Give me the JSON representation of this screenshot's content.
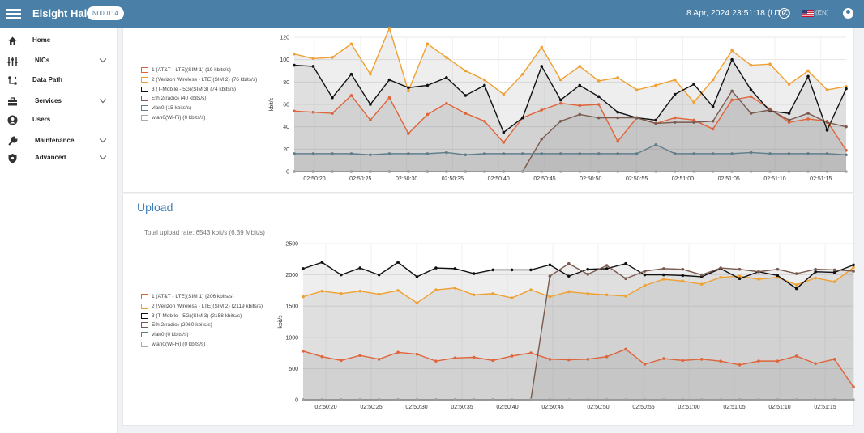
{
  "header": {
    "app_title": "Elsight Halo",
    "device_id": "N000114",
    "datetime": "8 Apr, 2024 23:51:18 (UTC)",
    "language": "(EN)",
    "icons": [
      "menu-icon",
      "help-icon",
      "us-flag-icon",
      "account-icon"
    ]
  },
  "sidebar": {
    "items": [
      {
        "label": "Home",
        "icon": "home-icon",
        "expandable": false
      },
      {
        "label": "NICs",
        "icon": "sliders-icon",
        "expandable": true
      },
      {
        "label": "Data Path",
        "icon": "data-path-icon",
        "expandable": false
      },
      {
        "label": "Services",
        "icon": "toolbox-icon",
        "expandable": true
      },
      {
        "label": "Users",
        "icon": "user-icon",
        "expandable": false
      },
      {
        "label": "Maintenance",
        "icon": "wrench-icon",
        "expandable": true
      },
      {
        "label": "Advanced",
        "icon": "shield-icon",
        "expandable": true
      }
    ]
  },
  "download": {
    "legend": [
      {
        "label": "1 (AT&T - LTE)(SIM 1) (19 kbits/s)",
        "color": "#e0643a"
      },
      {
        "label": "2 (Verizon Wireless - LTE)(SIM 2) (76 kbits/s)",
        "color": "#f0a030"
      },
      {
        "label": "3 (T-Mobile - 5G)(SIM 3) (74 kbits/s)",
        "color": "#111111"
      },
      {
        "label": "Eth 2(radio) (40 kbits/s)",
        "color": "#7a5a4e"
      },
      {
        "label": "vlan0 (15 kbits/s)",
        "color": "#607d8b"
      },
      {
        "label": "wlan0(Wi-Fi) (0 kbits/s)",
        "color": "#aaaaaa"
      }
    ]
  },
  "upload": {
    "title": "Upload",
    "total_rate": "Total upload rate: 6543 kbit/s (6.39 Mbit/s)",
    "legend": [
      {
        "label": "1 (AT&T - LTE)(SIM 1) (206 kbits/s)",
        "color": "#e0643a"
      },
      {
        "label": "2 (Verizon Wireless - LTE)(SIM 2) (2119 kbits/s)",
        "color": "#f0a030"
      },
      {
        "label": "3 (T-Mobile - 5G)(SIM 3) (2158 kbits/s)",
        "color": "#111111"
      },
      {
        "label": "Eth 2(radio) (2060 kbits/s)",
        "color": "#7a5a4e"
      },
      {
        "label": "vlan0 (0 kbits/s)",
        "color": "#607d8b"
      },
      {
        "label": "wlan0(Wi-Fi) (0 kbits/s)",
        "color": "#aaaaaa"
      }
    ]
  },
  "chart_data": [
    {
      "type": "line",
      "ylabel": "kbit/s",
      "ylim": [
        0,
        120
      ],
      "yticks": [
        0,
        20,
        40,
        60,
        80,
        100,
        120
      ],
      "xtick_labels": [
        "02:50:20",
        "02:50:25",
        "02:50:30",
        "02:50:35",
        "02:50:40",
        "02:50:45",
        "02:50:50",
        "02:50:55",
        "02:51:00",
        "02:51:05",
        "02:51:10",
        "02:51:15"
      ],
      "grid": true,
      "series": [
        {
          "name": "1 (AT&T - LTE)(SIM 1)",
          "color": "#e0643a",
          "values": [
            54,
            53,
            52,
            68,
            46,
            66,
            34,
            51,
            61,
            52,
            45,
            26,
            48,
            55,
            61,
            59,
            60,
            27,
            48,
            43,
            48,
            46,
            38,
            64,
            67,
            56,
            44,
            47,
            45,
            19
          ]
        },
        {
          "name": "2 (Verizon Wireless - LTE)(SIM 2)",
          "color": "#f0a030",
          "values": [
            105,
            101,
            102,
            114,
            87,
            128,
            72,
            114,
            102,
            90,
            82,
            69,
            87,
            111,
            82,
            94,
            81,
            84,
            73,
            77,
            82,
            62,
            82,
            108,
            95,
            96,
            78,
            90,
            73,
            76
          ]
        },
        {
          "name": "3 (T-Mobile - 5G)(SIM 3)",
          "color": "#111111",
          "values": [
            95,
            94,
            66,
            87,
            60,
            82,
            75,
            77,
            84,
            68,
            77,
            35,
            48,
            94,
            64,
            77,
            67,
            53,
            48,
            46,
            69,
            78,
            58,
            100,
            73,
            54,
            52,
            85,
            37,
            74
          ]
        },
        {
          "name": "Eth 2(radio)",
          "color": "#7a5a4e",
          "values": [
            0,
            0,
            0,
            0,
            0,
            0,
            0,
            0,
            0,
            0,
            0,
            0,
            0,
            29,
            45,
            51,
            48,
            48,
            48,
            43,
            44,
            44,
            45,
            72,
            52,
            55,
            46,
            52,
            44,
            40
          ]
        },
        {
          "name": "vlan0",
          "color": "#607d8b",
          "values": [
            16,
            16,
            16,
            16,
            15,
            16,
            16,
            16,
            17,
            15,
            16,
            16,
            16,
            16,
            16,
            16,
            16,
            16,
            16,
            24,
            16,
            16,
            16,
            16,
            17,
            16,
            16,
            16,
            16,
            15
          ]
        },
        {
          "name": "wlan0(Wi-Fi)",
          "color": "#aaaaaa",
          "values": [
            0,
            0,
            0,
            0,
            0,
            0,
            0,
            0,
            0,
            0,
            0,
            0,
            0,
            0,
            0,
            0,
            0,
            0,
            0,
            0,
            0,
            0,
            0,
            0,
            0,
            0,
            0,
            0,
            0,
            0
          ]
        }
      ]
    },
    {
      "type": "line",
      "title": "Upload",
      "ylabel": "kbit/s",
      "ylim": [
        0,
        2500
      ],
      "yticks": [
        0,
        500,
        1000,
        1500,
        2000,
        2500
      ],
      "xtick_labels": [
        "02:50:20",
        "02:50:25",
        "02:50:30",
        "02:50:35",
        "02:50:40",
        "02:50:45",
        "02:50:50",
        "02:50:55",
        "02:51:00",
        "02:51:05",
        "02:51:10",
        "02:51:15"
      ],
      "grid": true,
      "series": [
        {
          "name": "1 (AT&T - LTE)(SIM 1)",
          "color": "#e0643a",
          "values": [
            780,
            690,
            630,
            710,
            650,
            760,
            730,
            620,
            670,
            680,
            630,
            700,
            750,
            650,
            640,
            650,
            690,
            810,
            570,
            660,
            630,
            650,
            620,
            560,
            620,
            620,
            700,
            580,
            650,
            206
          ]
        },
        {
          "name": "2 (Verizon Wireless - LTE)(SIM 2)",
          "color": "#f0a030",
          "values": [
            1650,
            1740,
            1700,
            1740,
            1690,
            1750,
            1550,
            1760,
            1790,
            1680,
            1700,
            1630,
            1760,
            1650,
            1730,
            1700,
            1680,
            1660,
            1830,
            1930,
            1900,
            1850,
            1960,
            1980,
            1930,
            1960,
            1840,
            1950,
            1890,
            2119
          ]
        },
        {
          "name": "3 (T-Mobile - 5G)(SIM 3)",
          "color": "#111111",
          "values": [
            2100,
            2200,
            2000,
            2110,
            2000,
            2200,
            1970,
            2110,
            2100,
            2020,
            2080,
            2080,
            2080,
            2160,
            1980,
            2090,
            2100,
            2180,
            2000,
            2000,
            1990,
            1970,
            2100,
            1940,
            2050,
            1990,
            1780,
            2050,
            2040,
            2158
          ]
        },
        {
          "name": "Eth 2(radio)",
          "color": "#7a5a4e",
          "values": [
            0,
            0,
            0,
            0,
            0,
            0,
            0,
            0,
            0,
            0,
            0,
            0,
            0,
            1980,
            2180,
            2010,
            2150,
            1940,
            2060,
            2100,
            2090,
            2000,
            2110,
            2090,
            2050,
            2090,
            2020,
            2090,
            2080,
            2060
          ]
        },
        {
          "name": "vlan0",
          "color": "#607d8b",
          "values": [
            0,
            0,
            0,
            0,
            0,
            0,
            0,
            0,
            0,
            0,
            0,
            0,
            0,
            0,
            0,
            0,
            0,
            0,
            0,
            0,
            0,
            0,
            0,
            0,
            0,
            0,
            0,
            0,
            0,
            0
          ]
        },
        {
          "name": "wlan0(Wi-Fi)",
          "color": "#aaaaaa",
          "values": [
            0,
            0,
            0,
            0,
            0,
            0,
            0,
            0,
            0,
            0,
            0,
            0,
            0,
            0,
            0,
            0,
            0,
            0,
            0,
            0,
            0,
            0,
            0,
            0,
            0,
            0,
            0,
            0,
            0,
            0
          ]
        }
      ]
    }
  ]
}
